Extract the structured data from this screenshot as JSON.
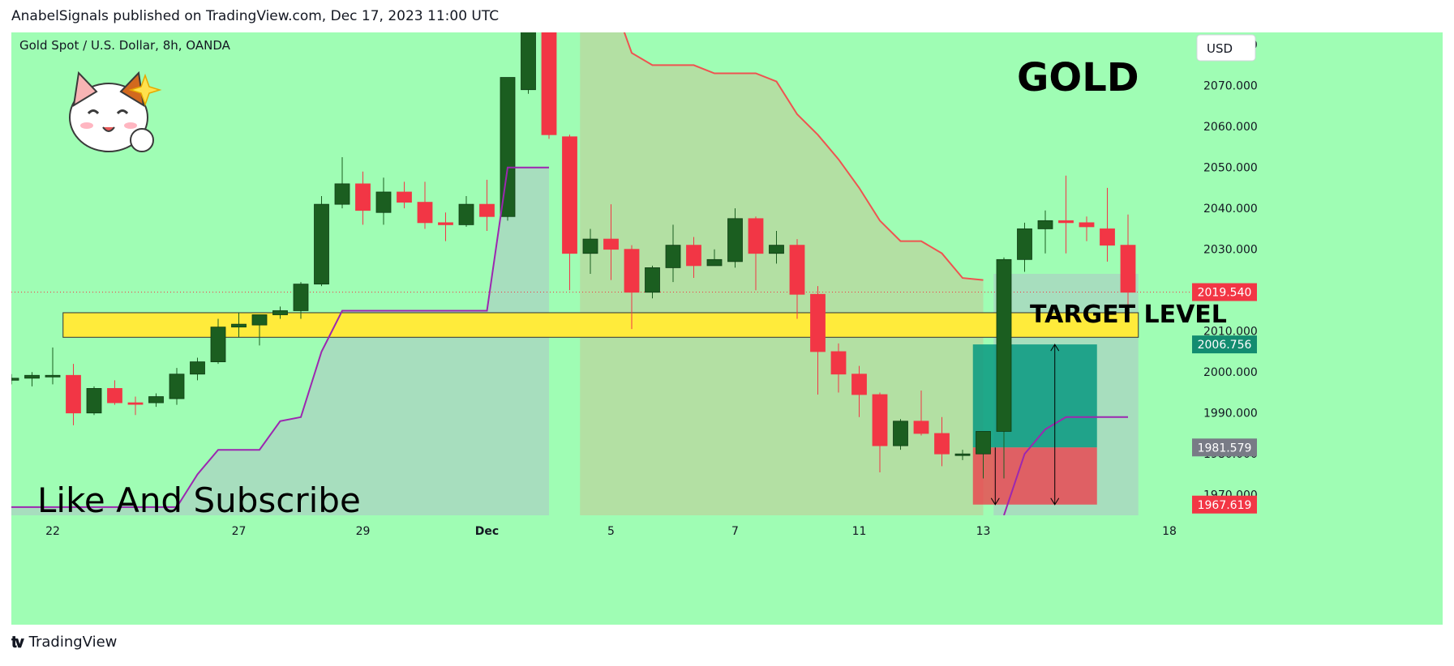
{
  "header": {
    "attribution": "AnabelSignals published on TradingView.com, Dec 17, 2023 11:00 UTC"
  },
  "footer": {
    "brand": "TradingView"
  },
  "chart_data": {
    "type": "candlestick",
    "symbol_label": "Gold Spot / U.S. Dollar, 8h, OANDA",
    "currency": "USD",
    "title": "GOLD",
    "annotations": {
      "bottom_left": "Like And Subscribe",
      "target": "TARGET LEVEL"
    },
    "ylim": [
      1965,
      2083
    ],
    "y_ticks": [
      1970,
      1980,
      1990,
      2000,
      2010,
      2020,
      2030,
      2040,
      2050,
      2060,
      2070,
      2080
    ],
    "x_ticks": [
      {
        "label": "22",
        "index": 2
      },
      {
        "label": "27",
        "index": 11
      },
      {
        "label": "29",
        "index": 17
      },
      {
        "label": "Dec",
        "index": 23
      },
      {
        "label": "5",
        "index": 29
      },
      {
        "label": "7",
        "index": 35
      },
      {
        "label": "11",
        "index": 41
      },
      {
        "label": "13",
        "index": 47
      },
      {
        "label": "18",
        "index": 56
      }
    ],
    "candles": [
      {
        "o": 1998.0,
        "h": 1999.5,
        "l": 1997.0,
        "c": 1998.5
      },
      {
        "o": 1998.5,
        "h": 2000.0,
        "l": 1996.5,
        "c": 1999.2
      },
      {
        "o": 1998.8,
        "h": 2006.0,
        "l": 1997.0,
        "c": 1999.2
      },
      {
        "o": 1999.2,
        "h": 2002.0,
        "l": 1987.0,
        "c": 1990.0
      },
      {
        "o": 1990.0,
        "h": 1996.5,
        "l": 1989.5,
        "c": 1996.0
      },
      {
        "o": 1996.0,
        "h": 1998.0,
        "l": 1992.0,
        "c": 1992.5
      },
      {
        "o": 1992.5,
        "h": 1994.0,
        "l": 1989.5,
        "c": 1992.4
      },
      {
        "o": 1992.5,
        "h": 1994.8,
        "l": 1991.5,
        "c": 1994.0
      },
      {
        "o": 1993.5,
        "h": 2001.0,
        "l": 1992.0,
        "c": 1999.5
      },
      {
        "o": 1999.5,
        "h": 2003.5,
        "l": 1998.0,
        "c": 2002.5
      },
      {
        "o": 2002.5,
        "h": 2013.0,
        "l": 2002.0,
        "c": 2011.0
      },
      {
        "o": 2011.0,
        "h": 2014.5,
        "l": 2008.5,
        "c": 2011.7
      },
      {
        "o": 2011.5,
        "h": 2014.0,
        "l": 2006.5,
        "c": 2014.0
      },
      {
        "o": 2014.0,
        "h": 2016.0,
        "l": 2013.0,
        "c": 2015.0
      },
      {
        "o": 2015.0,
        "h": 2022.0,
        "l": 2013.0,
        "c": 2021.5
      },
      {
        "o": 2021.5,
        "h": 2043.0,
        "l": 2021.0,
        "c": 2041.0
      },
      {
        "o": 2041.0,
        "h": 2052.5,
        "l": 2040.0,
        "c": 2046.0
      },
      {
        "o": 2046.0,
        "h": 2049.0,
        "l": 2036.0,
        "c": 2039.5
      },
      {
        "o": 2039.0,
        "h": 2047.5,
        "l": 2036.0,
        "c": 2044.0
      },
      {
        "o": 2044.0,
        "h": 2046.5,
        "l": 2040.0,
        "c": 2041.5
      },
      {
        "o": 2041.5,
        "h": 2046.5,
        "l": 2035.0,
        "c": 2036.5
      },
      {
        "o": 2036.5,
        "h": 2039.0,
        "l": 2032.0,
        "c": 2036.0
      },
      {
        "o": 2036.0,
        "h": 2043.0,
        "l": 2035.5,
        "c": 2041.0
      },
      {
        "o": 2041.0,
        "h": 2047.0,
        "l": 2034.5,
        "c": 2038.0
      },
      {
        "o": 2038.0,
        "h": 2071.5,
        "l": 2037.0,
        "c": 2072.0
      },
      {
        "o": 2069.0,
        "h": 2085.5,
        "l": 2068.0,
        "c": 2083.5
      },
      {
        "o": 2083.5,
        "h": 2085.0,
        "l": 2057.0,
        "c": 2058.0
      },
      {
        "o": 2057.5,
        "h": 2058.0,
        "l": 2020.0,
        "c": 2029.0
      },
      {
        "o": 2029.0,
        "h": 2035.0,
        "l": 2024.0,
        "c": 2032.5
      },
      {
        "o": 2032.5,
        "h": 2041.0,
        "l": 2022.5,
        "c": 2030.0
      },
      {
        "o": 2030.0,
        "h": 2031.0,
        "l": 2010.5,
        "c": 2019.5
      },
      {
        "o": 2019.5,
        "h": 2026.0,
        "l": 2018.0,
        "c": 2025.5
      },
      {
        "o": 2025.5,
        "h": 2036.0,
        "l": 2022.0,
        "c": 2031.0
      },
      {
        "o": 2031.0,
        "h": 2033.0,
        "l": 2023.0,
        "c": 2026.0
      },
      {
        "o": 2026.0,
        "h": 2030.0,
        "l": 2026.0,
        "c": 2027.5
      },
      {
        "o": 2027.0,
        "h": 2040.0,
        "l": 2025.5,
        "c": 2037.5
      },
      {
        "o": 2037.5,
        "h": 2038.0,
        "l": 2020.0,
        "c": 2029.0
      },
      {
        "o": 2029.0,
        "h": 2034.5,
        "l": 2026.5,
        "c": 2031.0
      },
      {
        "o": 2031.0,
        "h": 2032.5,
        "l": 2013.0,
        "c": 2019.0
      },
      {
        "o": 2019.0,
        "h": 2021.0,
        "l": 1994.5,
        "c": 2005.0
      },
      {
        "o": 2005.0,
        "h": 2007.0,
        "l": 1995.0,
        "c": 1999.5
      },
      {
        "o": 1999.5,
        "h": 2001.5,
        "l": 1989.0,
        "c": 1994.5
      },
      {
        "o": 1994.5,
        "h": 1995.0,
        "l": 1975.5,
        "c": 1982.0
      },
      {
        "o": 1982.0,
        "h": 1988.5,
        "l": 1981.0,
        "c": 1988.0
      },
      {
        "o": 1988.0,
        "h": 1995.5,
        "l": 1984.5,
        "c": 1985.0
      },
      {
        "o": 1985.0,
        "h": 1989.0,
        "l": 1977.0,
        "c": 1980.0
      },
      {
        "o": 1980.0,
        "h": 1981.0,
        "l": 1978.5,
        "c": 1980.0
      },
      {
        "o": 1980.0,
        "h": 1985.5,
        "l": 1974.0,
        "c": 1985.5
      },
      {
        "o": 1985.5,
        "h": 2028.0,
        "l": 1974.0,
        "c": 2027.5
      },
      {
        "o": 2027.5,
        "h": 2036.5,
        "l": 2024.5,
        "c": 2035.0
      },
      {
        "o": 2035.0,
        "h": 2039.5,
        "l": 2029.0,
        "c": 2037.0
      },
      {
        "o": 2037.0,
        "h": 2048.0,
        "l": 2029.0,
        "c": 2036.5
      },
      {
        "o": 2036.5,
        "h": 2038.0,
        "l": 2032.0,
        "c": 2035.5
      },
      {
        "o": 2035.0,
        "h": 2045.0,
        "l": 2027.0,
        "c": 2031.0
      },
      {
        "o": 2031.0,
        "h": 2038.5,
        "l": 2015.5,
        "c": 2019.5
      }
    ],
    "upper_band": [
      {
        "i": 27.5,
        "y": 2085
      },
      {
        "i": 29.5,
        "y": 2085
      },
      {
        "i": 30,
        "y": 2078
      },
      {
        "i": 31,
        "y": 2075
      },
      {
        "i": 33,
        "y": 2075
      },
      {
        "i": 34,
        "y": 2073
      },
      {
        "i": 36,
        "y": 2073
      },
      {
        "i": 37,
        "y": 2071
      },
      {
        "i": 38,
        "y": 2063
      },
      {
        "i": 39,
        "y": 2058
      },
      {
        "i": 40,
        "y": 2052
      },
      {
        "i": 41,
        "y": 2045
      },
      {
        "i": 42,
        "y": 2037
      },
      {
        "i": 43,
        "y": 2032
      },
      {
        "i": 44,
        "y": 2032
      },
      {
        "i": 45,
        "y": 2029
      },
      {
        "i": 46,
        "y": 2023
      },
      {
        "i": 47,
        "y": 2022.5
      }
    ],
    "lower_band_1": [
      {
        "i": 0,
        "y": 1967
      },
      {
        "i": 8,
        "y": 1967
      },
      {
        "i": 9,
        "y": 1975
      },
      {
        "i": 10,
        "y": 1981
      },
      {
        "i": 12,
        "y": 1981
      },
      {
        "i": 13,
        "y": 1988
      },
      {
        "i": 14,
        "y": 1989
      },
      {
        "i": 15,
        "y": 2005
      },
      {
        "i": 16,
        "y": 2015
      },
      {
        "i": 23,
        "y": 2015
      },
      {
        "i": 24,
        "y": 2050
      },
      {
        "i": 26,
        "y": 2050
      }
    ],
    "lower_band_2": [
      {
        "i": 48,
        "y": 1965
      },
      {
        "i": 49,
        "y": 1980
      },
      {
        "i": 50,
        "y": 1986
      },
      {
        "i": 51,
        "y": 1989
      },
      {
        "i": 54,
        "y": 1989
      }
    ],
    "target_zone": {
      "top": 2014.5,
      "bottom": 2008.5,
      "start": 2.5,
      "end": 54.5
    },
    "position": {
      "entry": 1981.579,
      "target": 2006.756,
      "stop": 1967.619,
      "start": 46.5,
      "end": 52.5
    },
    "price_labels": [
      {
        "value": "2019.540",
        "color": "#f23645"
      },
      {
        "value": "2006.756",
        "color": "#138c70"
      },
      {
        "value": "1981.579",
        "color": "#787b86"
      },
      {
        "value": "1967.619",
        "color": "#f23645"
      }
    ],
    "current_price": 2019.54,
    "colors": {
      "up": "#1b5e20",
      "down": "#f23645",
      "background": "#9ffdb4",
      "target_zone": "#ffeb3b",
      "profit": "#089981",
      "loss": "#f23645",
      "band_line": "#9c27b0",
      "upper_line": "#ef5350"
    }
  }
}
